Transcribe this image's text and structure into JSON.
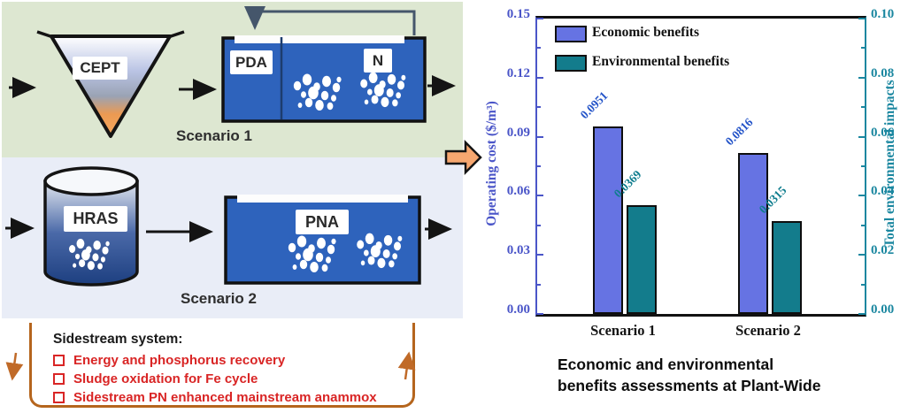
{
  "diagram": {
    "scenario1": {
      "label": "Scenario 1",
      "funnel_label": "CEPT",
      "tank_labels": {
        "left": "PDA",
        "right": "N"
      }
    },
    "scenario2": {
      "label": "Scenario 2",
      "cylinder_label": "HRAS",
      "tank_label": "PNA"
    },
    "sidestream": {
      "title": "Sidestream system:",
      "items": [
        "Energy and phosphorus recovery",
        "Sludge oxidation for Fe cycle",
        "Sidestream  PN enhanced mainstream anammox"
      ]
    },
    "colors": {
      "panel1_bg": "#dde7d1",
      "panel2_bg": "#e9edf7",
      "tank_blue": "#2e63bc",
      "funnel_orange": "#f0944a",
      "sidestream_border": "#b5651d",
      "sidestream_text_red": "#d92525",
      "block_arrow_orange": "#f6a770"
    }
  },
  "chart_data": {
    "type": "bar",
    "categories": [
      "Scenario 1",
      "Scenario 2"
    ],
    "series": [
      {
        "name": "Economic benefits",
        "axis": "left",
        "values": [
          0.0951,
          0.0816
        ],
        "value_labels": [
          "0.0951",
          "0.0816"
        ],
        "color": "#6673e3",
        "label_color": "#2353c8"
      },
      {
        "name": "Environmental benefits",
        "axis": "right",
        "values": [
          0.0369,
          0.0315
        ],
        "value_labels": [
          "0.0369",
          "0.0315"
        ],
        "color": "#137c8c",
        "label_color": "#0f7d8e"
      }
    ],
    "left_axis": {
      "label": "Operating cost ($/m³)",
      "range": [
        0,
        0.15
      ],
      "ticks": [
        "0.00",
        "0.03",
        "0.06",
        "0.09",
        "0.12",
        "0.15"
      ],
      "color": "#4a55c8"
    },
    "right_axis": {
      "label": "Total environmental impacts",
      "range": [
        0,
        0.1
      ],
      "ticks": [
        "0.00",
        "0.02",
        "0.04",
        "0.06",
        "0.08",
        "0.10"
      ],
      "color": "#1b87a0"
    },
    "grid": false,
    "legend_position": "top-left-inside",
    "caption_line1": "Economic and environmental",
    "caption_line2": "benefits assessments at Plant-Wide"
  }
}
